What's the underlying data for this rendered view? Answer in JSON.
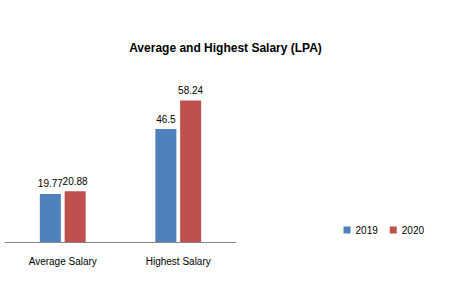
{
  "chart_data": {
    "type": "bar",
    "title": "Average and Highest Salary (LPA)",
    "categories": [
      "Average Salary",
      "Highest Salary"
    ],
    "series": [
      {
        "name": "2019",
        "color": "#4f81bd",
        "values": [
          19.77,
          46.5
        ]
      },
      {
        "name": "2020",
        "color": "#c0504d",
        "values": [
          20.88,
          58.24
        ]
      }
    ],
    "ylim": [
      0,
      70
    ],
    "yticks": [
      0,
      10,
      20,
      30,
      40,
      50,
      60,
      70
    ],
    "grid": false,
    "data_labels": true,
    "tick_labels": "x",
    "legend": "right"
  }
}
